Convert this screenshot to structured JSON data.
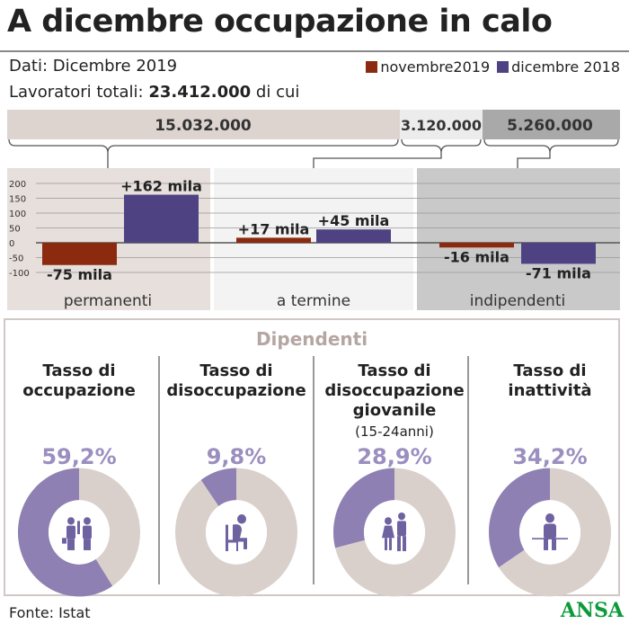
{
  "title": "A dicembre occupazione in calo",
  "subtitle": "Dati: Dicembre 2019",
  "totals": {
    "label": "Lavoratori totali:",
    "value": "23.412.000",
    "suffix": "di cui"
  },
  "legend": [
    {
      "name": "novembre2019",
      "color": "#8b2a0e"
    },
    {
      "name": "dicembre 2018",
      "color": "#4f4282"
    }
  ],
  "segments": [
    {
      "value": "15.032.000",
      "color": "#ddd4d0"
    },
    {
      "value": "3.120.000",
      "color": "#ececec"
    },
    {
      "value": "5.260.000",
      "color": "#a9a9a9"
    }
  ],
  "chart_data": {
    "type": "bar",
    "categories": [
      "permanenti",
      "a termine",
      "indipendenti"
    ],
    "series": [
      {
        "name": "novembre2019",
        "values": [
          -75,
          17,
          -16
        ],
        "labels": [
          "-75 mila",
          "+17 mila",
          "-16 mila"
        ],
        "color": "#8b2a0e"
      },
      {
        "name": "dicembre 2018",
        "values": [
          162,
          45,
          -71
        ],
        "labels": [
          "+162 mila",
          "+45 mila",
          "-71 mila"
        ],
        "color": "#4f4282"
      }
    ],
    "yticks": [
      "200",
      "150",
      "100",
      "50",
      "0",
      "-50",
      "-100"
    ],
    "ylim": [
      -100,
      200
    ],
    "panel_colors": [
      "#e6dfdb",
      "#f3f3f3",
      "#c9c9c9"
    ]
  },
  "dipendenti": {
    "heading": "Dipendenti",
    "items": [
      {
        "title": [
          "Tasso di",
          "occupazione"
        ],
        "note": "",
        "value": "59,2%",
        "fraction": 0.592,
        "icon": "workers-icon"
      },
      {
        "title": [
          "Tasso di",
          "disoccupazione"
        ],
        "note": "",
        "value": "9,8%",
        "fraction": 0.098,
        "icon": "sad-seated-person-icon"
      },
      {
        "title": [
          "Tasso di",
          "disoccupazione",
          "giovanile"
        ],
        "note": "(15-24anni)",
        "value": "28,9%",
        "fraction": 0.289,
        "icon": "young-people-icon"
      },
      {
        "title": [
          "Tasso di",
          "inattività"
        ],
        "note": "",
        "value": "34,2%",
        "fraction": 0.342,
        "icon": "seated-person-icon"
      }
    ],
    "colors": {
      "filled": "#8e80b3",
      "rest": "#d9d0cc",
      "percent": "#9b8fbf",
      "heading": "#b5a6a2"
    }
  },
  "source": "Fonte: Istat",
  "logo": "ANSA"
}
